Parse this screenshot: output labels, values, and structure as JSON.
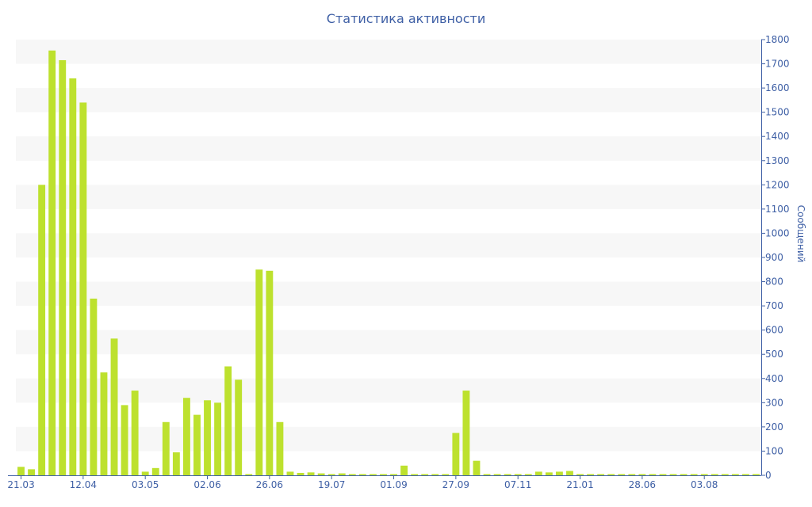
{
  "chart_data": {
    "type": "bar",
    "title": "Статистика активности",
    "ylabel": "Сообщений",
    "xlabel": "",
    "ylim": [
      0,
      1800
    ],
    "y_ticks": [
      0,
      100,
      200,
      300,
      400,
      500,
      600,
      700,
      800,
      900,
      1000,
      1100,
      1200,
      1300,
      1400,
      1500,
      1600,
      1700,
      1800
    ],
    "y_axis_side": "right",
    "grid": "horizontal bands",
    "x_tick_labels": [
      {
        "label": "21.03",
        "index": 0
      },
      {
        "label": "12.04",
        "index": 6
      },
      {
        "label": "03.05",
        "index": 12
      },
      {
        "label": "02.06",
        "index": 18
      },
      {
        "label": "26.06",
        "index": 24
      },
      {
        "label": "19.07",
        "index": 30
      },
      {
        "label": "01.09",
        "index": 36
      },
      {
        "label": "27.09",
        "index": 42
      },
      {
        "label": "07.11",
        "index": 48
      },
      {
        "label": "21.01",
        "index": 54
      },
      {
        "label": "28.06",
        "index": 60
      },
      {
        "label": "03.08",
        "index": 66
      }
    ],
    "values": [
      35,
      25,
      1200,
      1755,
      1715,
      1640,
      1540,
      730,
      425,
      565,
      290,
      350,
      15,
      30,
      220,
      95,
      320,
      250,
      310,
      300,
      450,
      395,
      5,
      850,
      845,
      220,
      15,
      10,
      12,
      8,
      5,
      8,
      5,
      5,
      5,
      5,
      5,
      40,
      5,
      5,
      5,
      5,
      175,
      350,
      60,
      5,
      5,
      5,
      5,
      5,
      15,
      12,
      15,
      18,
      5,
      5,
      5,
      5,
      5,
      5,
      5,
      5,
      5,
      5,
      5,
      5,
      5,
      5,
      5,
      5,
      5,
      5
    ],
    "colors": {
      "bar": "#bde12e",
      "band": "#f7f7f7",
      "text": "#3e5fa5",
      "axis": "#3e5fa5"
    }
  }
}
